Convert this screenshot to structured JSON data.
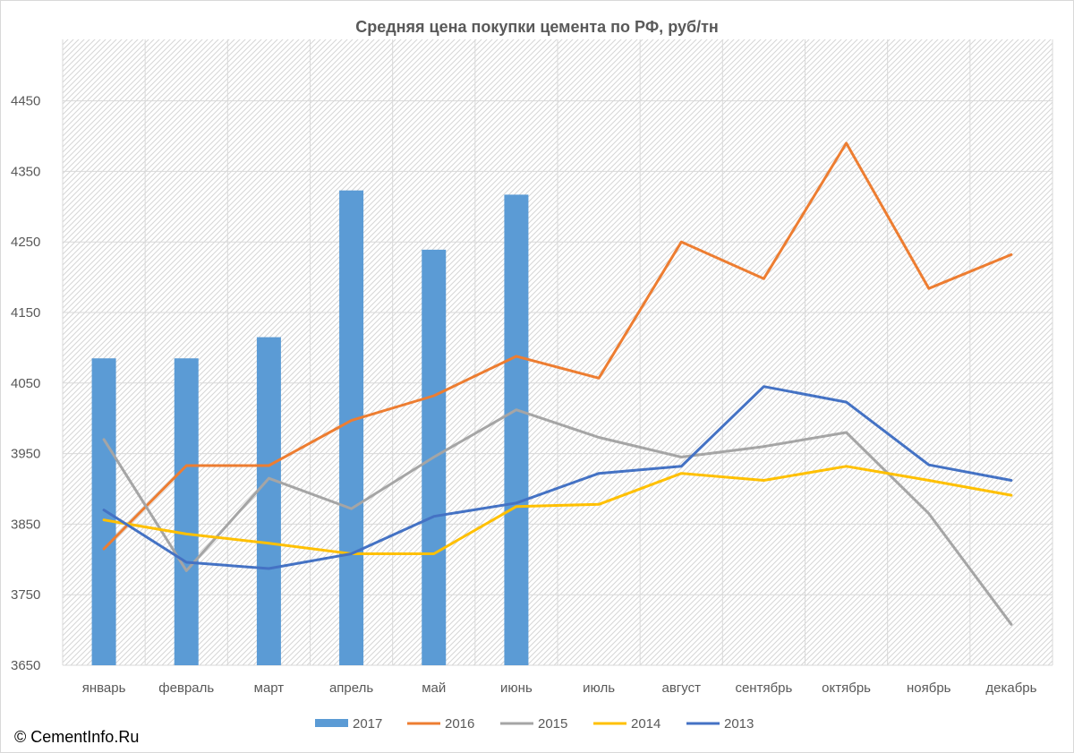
{
  "footer": {
    "copyright": "© CementInfo.Ru"
  },
  "chart_data": {
    "type": "bar+line",
    "title": "Средняя цена покупки цемента по РФ, руб/тн",
    "xlabel": "",
    "ylabel": "",
    "categories": [
      "январь",
      "февраль",
      "март",
      "апрель",
      "май",
      "июнь",
      "июль",
      "август",
      "сентябрь",
      "октябрь",
      "ноябрь",
      "декабрь"
    ],
    "ylim": [
      3650,
      4500
    ],
    "yticks": [
      3650,
      3750,
      3850,
      3950,
      4050,
      4150,
      4250,
      4350,
      4450
    ],
    "grid": true,
    "legend_position": "bottom",
    "series": [
      {
        "name": "2017",
        "type": "bar",
        "color": "#5b9bd5",
        "values": [
          4085,
          4085,
          4115,
          4323,
          4239,
          4317,
          null,
          null,
          null,
          null,
          null,
          null
        ]
      },
      {
        "name": "2016",
        "type": "line",
        "color": "#ed7d31",
        "values": [
          3815,
          3933,
          3933,
          3997,
          4032,
          4088,
          4057,
          4250,
          4198,
          4390,
          4184,
          4232
        ]
      },
      {
        "name": "2015",
        "type": "line",
        "color": "#a5a5a5",
        "values": [
          3970,
          3784,
          3915,
          3872,
          3945,
          4012,
          3973,
          3945,
          3960,
          3980,
          3865,
          3708
        ]
      },
      {
        "name": "2014",
        "type": "line",
        "color": "#ffc000",
        "values": [
          3856,
          3836,
          3823,
          3808,
          3808,
          3875,
          3878,
          3922,
          3912,
          3932,
          3912,
          3891
        ]
      },
      {
        "name": "2013",
        "type": "line",
        "color": "#4472c4",
        "values": [
          3870,
          3796,
          3787,
          3808,
          3861,
          3880,
          3922,
          3932,
          4045,
          4023,
          3934,
          3912
        ]
      }
    ]
  }
}
